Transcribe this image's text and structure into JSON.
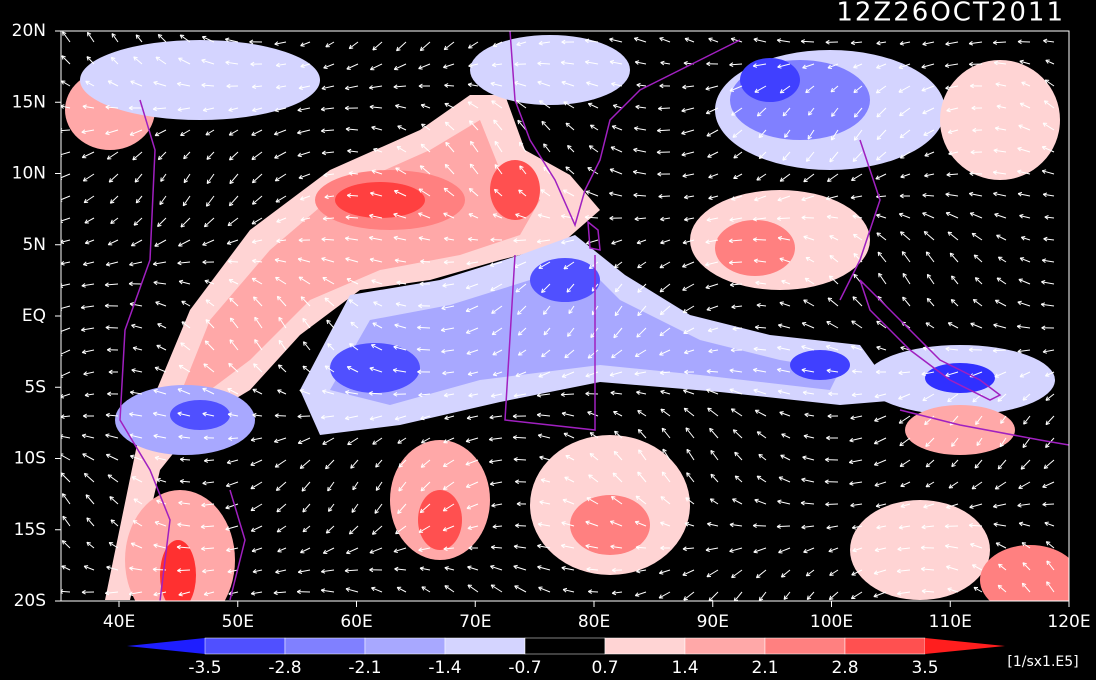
{
  "title": "12Z26OCT2011",
  "lat_labels": [
    "20N",
    "15N",
    "10N",
    "5N",
    "EQ",
    "5S",
    "10S",
    "15S",
    "20S"
  ],
  "lon_labels": [
    "40E",
    "50E",
    "60E",
    "70E",
    "80E",
    "90E",
    "100E",
    "110E",
    "120E"
  ],
  "colorbar": {
    "labels": [
      "-3.5",
      "-2.8",
      "-2.1",
      "-1.4",
      "-0.7",
      "0.7",
      "1.4",
      "2.1",
      "2.8",
      "3.5"
    ],
    "colors": [
      "#1e1eff",
      "#5050ff",
      "#8080ff",
      "#a8a8ff",
      "#d4d4ff",
      "#000000",
      "#ffd4d4",
      "#ffa8a8",
      "#ff8080",
      "#ff5050",
      "#ff1e1e"
    ],
    "unit": "[1/sx1.E5]"
  }
}
